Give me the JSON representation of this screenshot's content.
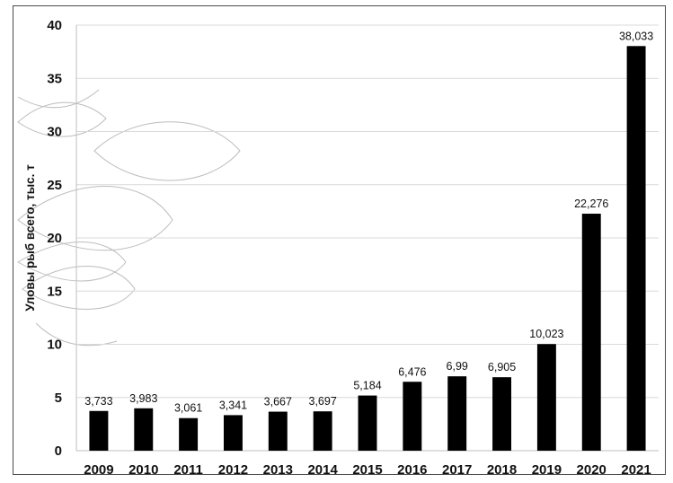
{
  "chart_data": {
    "type": "bar",
    "title": "",
    "xlabel": "",
    "ylabel": "Уловы рыб всего, тыс. т",
    "ylim": [
      0,
      40
    ],
    "yticks": [
      0,
      5,
      10,
      15,
      20,
      25,
      30,
      35,
      40
    ],
    "ytick_labels": [
      "0",
      "5",
      "10",
      "15",
      "20",
      "25",
      "30",
      "35",
      "40"
    ],
    "grid": true,
    "legend": "none",
    "categories": [
      "2009",
      "2010",
      "2011",
      "2012",
      "2013",
      "2014",
      "2015",
      "2016",
      "2017",
      "2018",
      "2019",
      "2020",
      "2021"
    ],
    "values": [
      3.733,
      3.983,
      3.061,
      3.341,
      3.667,
      3.697,
      5.184,
      6.476,
      6.99,
      6.905,
      10.023,
      22.276,
      38.033
    ],
    "data_labels": [
      "3,733",
      "3,983",
      "3,061",
      "3,341",
      "3,667",
      "3,697",
      "5,184",
      "6,476",
      "6,99",
      "6,905",
      "10,023",
      "22,276",
      "38,033"
    ],
    "bar_color": "#000000",
    "grid_color": "#d9d9d9"
  }
}
